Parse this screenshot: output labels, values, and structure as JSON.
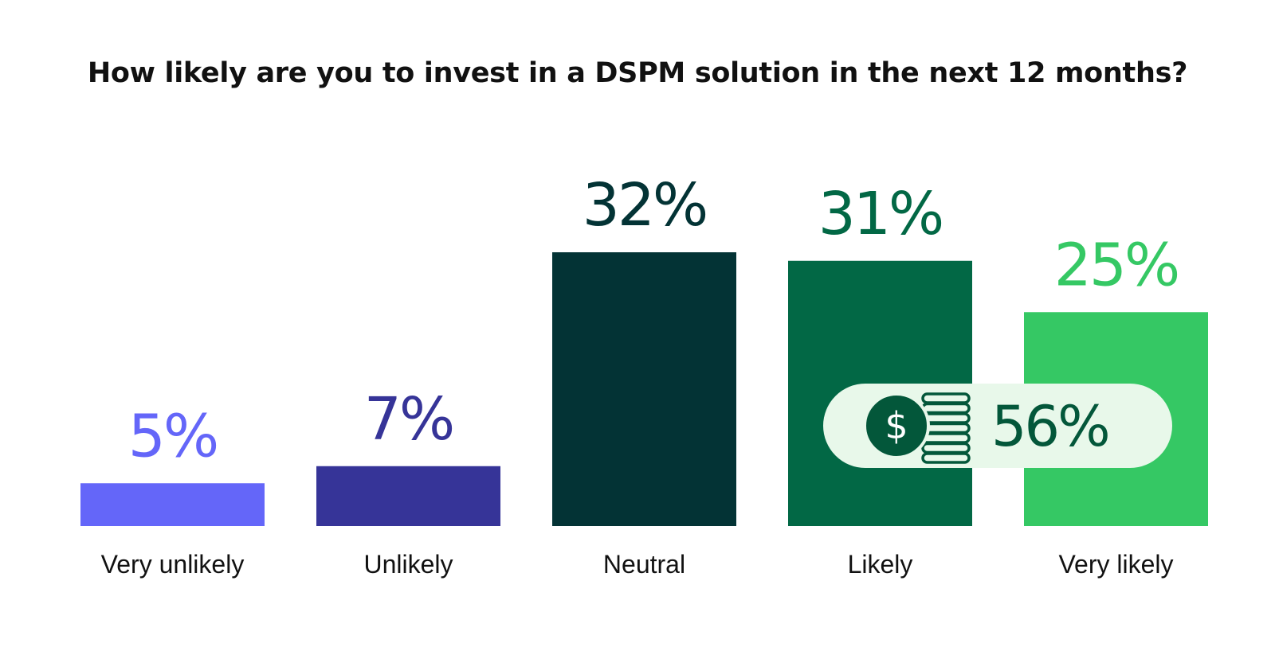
{
  "chart_data": {
    "type": "bar",
    "title": "How likely are you to invest in a DSPM solution in the next 12 months?",
    "categories": [
      "Very unlikely",
      "Unlikely",
      "Neutral",
      "Likely",
      "Very likely"
    ],
    "values": [
      5,
      7,
      32,
      31,
      25
    ],
    "value_labels": [
      "5%",
      "7%",
      "32%",
      "31%",
      "25%"
    ],
    "colors": [
      "#6466f9",
      "#363498",
      "#033335",
      "#026845",
      "#35c864"
    ],
    "ylim": [
      0,
      32
    ],
    "grid": false,
    "legend": "none",
    "callout": {
      "text": "56%",
      "icon": "dollar-coins-icon",
      "background": "#e8f8ea",
      "text_color": "#03573a",
      "icon_color": "#03573a"
    }
  }
}
